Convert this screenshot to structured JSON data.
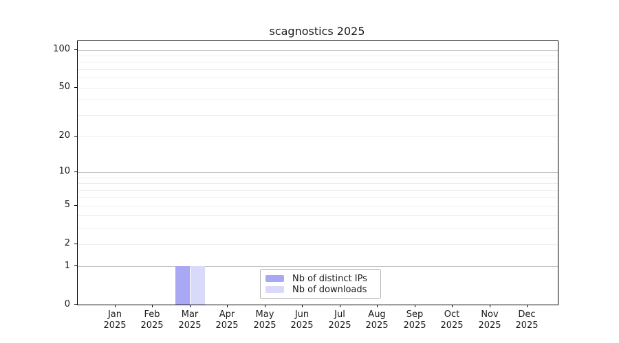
{
  "chart_data": {
    "type": "bar",
    "title": "scagnostics 2025",
    "categories": [
      {
        "month": "Jan",
        "year": "2025"
      },
      {
        "month": "Feb",
        "year": "2025"
      },
      {
        "month": "Mar",
        "year": "2025"
      },
      {
        "month": "Apr",
        "year": "2025"
      },
      {
        "month": "May",
        "year": "2025"
      },
      {
        "month": "Jun",
        "year": "2025"
      },
      {
        "month": "Jul",
        "year": "2025"
      },
      {
        "month": "Aug",
        "year": "2025"
      },
      {
        "month": "Sep",
        "year": "2025"
      },
      {
        "month": "Oct",
        "year": "2025"
      },
      {
        "month": "Nov",
        "year": "2025"
      },
      {
        "month": "Dec",
        "year": "2025"
      }
    ],
    "series": [
      {
        "name": "Nb of distinct IPs",
        "color": "#a8a8f4",
        "values": [
          0,
          0,
          1,
          0,
          0,
          0,
          0,
          0,
          0,
          0,
          0,
          0
        ]
      },
      {
        "name": "Nb of downloads",
        "color": "#d9d9fa",
        "values": [
          0,
          0,
          1,
          0,
          0,
          0,
          0,
          0,
          0,
          0,
          0,
          0
        ]
      }
    ],
    "xlabel": "",
    "ylabel": "",
    "yscale": "log1p",
    "ylim": [
      0,
      117
    ],
    "yticks": [
      {
        "value": 100,
        "label": "100"
      },
      {
        "value": 50,
        "label": "50"
      },
      {
        "value": 20,
        "label": "20"
      },
      {
        "value": 10,
        "label": "10"
      },
      {
        "value": 5,
        "label": "5"
      },
      {
        "value": 2,
        "label": "2"
      },
      {
        "value": 1,
        "label": "1"
      },
      {
        "value": 0,
        "label": "0"
      }
    ],
    "grid": {
      "orientation": "horizontal",
      "major_values": [
        1,
        10,
        100
      ],
      "minor_values": [
        2,
        3,
        4,
        5,
        6,
        7,
        8,
        9,
        20,
        30,
        40,
        50,
        60,
        70,
        80,
        90
      ],
      "major_color": "#c4c4c4",
      "minor_color": "#ededed"
    },
    "legend": {
      "position": "inside-lower-center",
      "border_color": "#b3b3b3"
    },
    "colors": {
      "background": "#ffffff",
      "spine": "#000000",
      "text": "#1a1a1a"
    }
  }
}
